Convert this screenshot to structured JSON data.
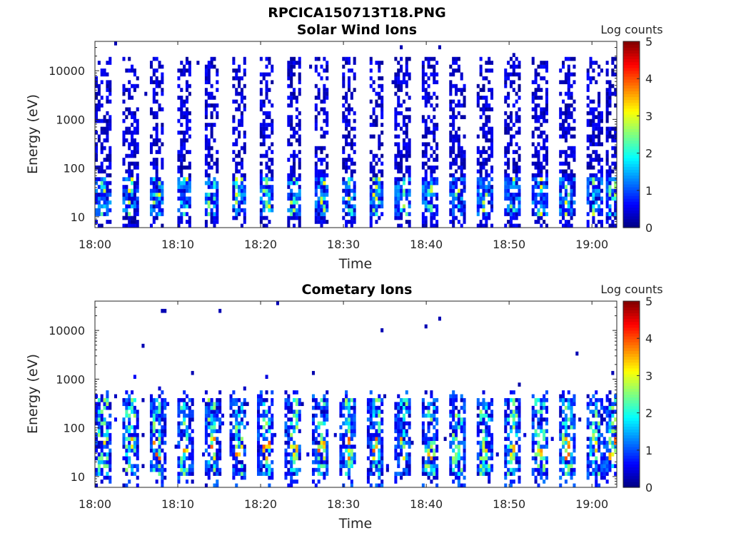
{
  "figure": {
    "title": "RPCICA150713T18.PNG"
  },
  "chart_data": [
    {
      "type": "heatmap",
      "title": "Solar Wind Ions",
      "xlabel": "Time",
      "ylabel": "Energy (eV)",
      "x_ticks": [
        "18:00",
        "18:10",
        "18:20",
        "18:30",
        "18:40",
        "18:50",
        "19:00"
      ],
      "x_range": [
        "18:00",
        "19:03"
      ],
      "y_scale": "log",
      "y_ticks": [
        "10",
        "100",
        "1000",
        "10000"
      ],
      "y_range": [
        6,
        40000
      ],
      "colorbar": {
        "label": "Log counts",
        "range": [
          0,
          5
        ],
        "ticks": [
          "0",
          "1",
          "2",
          "3",
          "4",
          "5"
        ],
        "colormap": "jet"
      },
      "sweep_center_minutes": [
        1,
        4.3,
        7.5,
        10.8,
        14.1,
        17.4,
        20.7,
        24,
        27.3,
        30.6,
        33.9,
        37.2,
        40.5,
        43.8,
        47.1,
        50.4,
        53.7,
        57,
        60.3,
        62.5
      ],
      "low_energy_band_eV": [
        10,
        60
      ],
      "peak_level": 3.2,
      "high_energy_extent_eV": 20000
    },
    {
      "type": "heatmap",
      "title": "Cometary Ions",
      "xlabel": "Time",
      "ylabel": "Energy (eV)",
      "x_ticks": [
        "18:00",
        "18:10",
        "18:20",
        "18:30",
        "18:40",
        "18:50",
        "19:00"
      ],
      "x_range": [
        "18:00",
        "19:03"
      ],
      "y_scale": "log",
      "y_ticks": [
        "10",
        "100",
        "1000",
        "10000"
      ],
      "y_range": [
        6,
        40000
      ],
      "colorbar": {
        "label": "Log counts",
        "range": [
          0,
          5
        ],
        "ticks": [
          "0",
          "1",
          "2",
          "3",
          "4",
          "5"
        ],
        "colormap": "jet"
      },
      "sweep_center_minutes": [
        1,
        4.3,
        7.5,
        10.8,
        14.1,
        17.4,
        20.7,
        24,
        27.3,
        30.6,
        33.9,
        37.2,
        40.5,
        43.8,
        47.1,
        50.4,
        53.7,
        57,
        60.3,
        62.5
      ],
      "low_energy_band_eV": [
        10,
        400
      ],
      "peak_level": 4.0,
      "high_energy_extent_eV": 600
    }
  ]
}
